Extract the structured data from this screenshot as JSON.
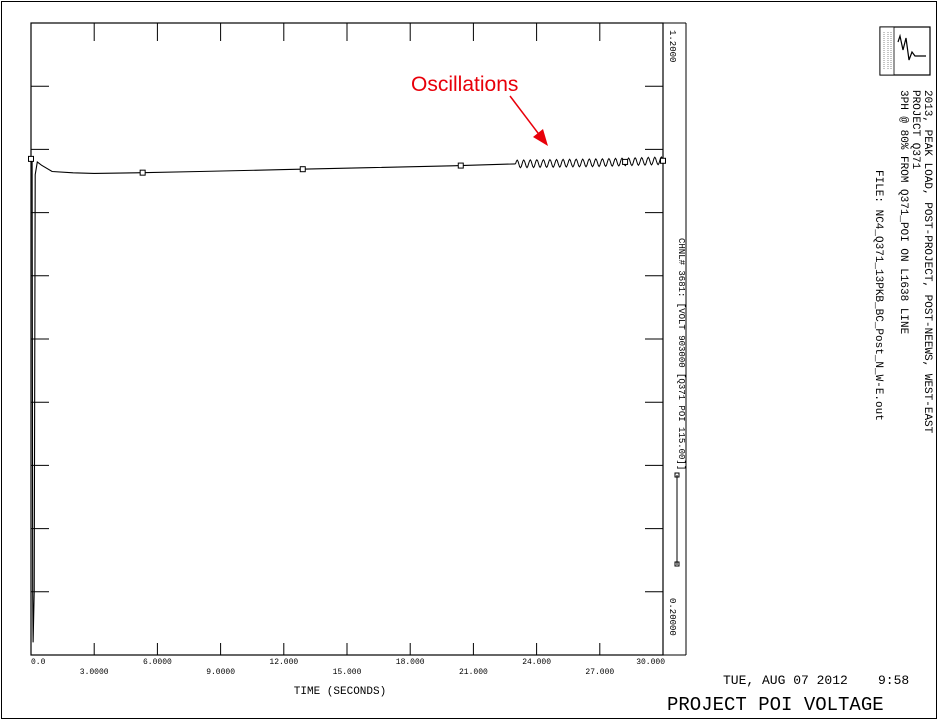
{
  "chart_data": {
    "type": "line",
    "x_unit_label": "TIME (SECONDS)",
    "x_ticks": [
      "0.0",
      "3.0000",
      "6.0000",
      "9.0000",
      "12.000",
      "15.000",
      "18.000",
      "21.000",
      "24.000",
      "27.000",
      "30.000"
    ],
    "xlim": [
      0,
      30
    ],
    "ylim": [
      0.2,
      1.2
    ],
    "y_tick_top": "1.2000",
    "y_tick_bottom": "0.20000",
    "channel_label": "CHNL# 3681: [VOLT 903000 [Q371 POI 115.00]]",
    "series": [
      {
        "name": "CHNL# 3681: [VOLT 903000 [Q371 POI 115.00]]",
        "x": [
          0,
          0.05,
          0.08,
          0.1,
          0.15,
          0.2,
          0.3,
          0.5,
          1,
          2,
          3,
          5,
          8,
          12,
          16,
          20,
          23,
          25,
          27,
          29,
          30
        ],
        "y": [
          0.985,
          0.985,
          0.3,
          0.22,
          0.3,
          0.96,
          0.98,
          0.975,
          0.965,
          0.963,
          0.962,
          0.963,
          0.965,
          0.968,
          0.971,
          0.974,
          0.977,
          0.978,
          0.979,
          0.981,
          0.982
        ],
        "oscillation_range_x": [
          23,
          30
        ],
        "color": "#000000"
      }
    ],
    "annotation": {
      "text": "Oscillations",
      "color": "#e8000a"
    },
    "title_lines": [
      "2013, PEAK LOAD, POST-PROJECT, POST-NEEWS, WEST-EAST",
      "PROJECT Q371",
      "3PH @ 80% FROM Q371_POI ON L1638 LINE"
    ],
    "file_line": "FILE: NC4_Q371_13PKB_BC_Post_N_W-E.out",
    "date_line": "TUE, AUG 07 2012",
    "time_line": "9:58",
    "plot_title": "PROJECT POI VOLTAGE",
    "grid": false
  }
}
